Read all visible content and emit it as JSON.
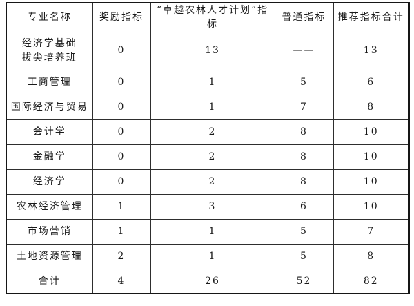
{
  "colors": {
    "background": "#ffffff",
    "border": "#2e2e2e",
    "text": "#1a1a1a"
  },
  "table": {
    "headers": [
      "专业名称",
      "奖励指标",
      "“卓越农林人才计划”指标",
      "普通指标",
      "推荐指标合计"
    ],
    "rows": [
      {
        "major_line1": "经济学基础",
        "major_line2": "拔尖培养班",
        "reward": "0",
        "program": "13",
        "ordinary": "——",
        "total": "13"
      },
      {
        "major": "工商管理",
        "reward": "0",
        "program": "1",
        "ordinary": "5",
        "total": "6"
      },
      {
        "major": "国际经济与贸易",
        "reward": "0",
        "program": "1",
        "ordinary": "7",
        "total": "8"
      },
      {
        "major": "会计学",
        "reward": "0",
        "program": "2",
        "ordinary": "8",
        "total": "10"
      },
      {
        "major": "金融学",
        "reward": "0",
        "program": "2",
        "ordinary": "8",
        "total": "10"
      },
      {
        "major": "经济学",
        "reward": "0",
        "program": "2",
        "ordinary": "8",
        "total": "10"
      },
      {
        "major": "农林经济管理",
        "reward": "1",
        "program": "3",
        "ordinary": "6",
        "total": "10"
      },
      {
        "major": "市场营销",
        "reward": "1",
        "program": "1",
        "ordinary": "5",
        "total": "7"
      },
      {
        "major": "土地资源管理",
        "reward": "2",
        "program": "1",
        "ordinary": "5",
        "total": "8"
      },
      {
        "major": "合计",
        "reward": "4",
        "program": "26",
        "ordinary": "52",
        "total": "82"
      }
    ]
  }
}
